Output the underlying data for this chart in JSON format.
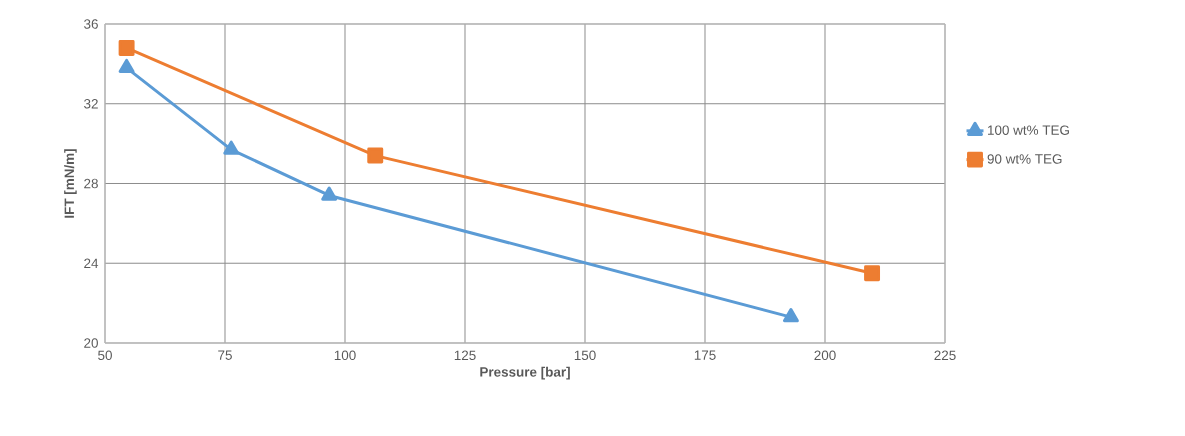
{
  "chart_data": {
    "type": "line",
    "xlabel": "Pressure [bar]",
    "ylabel": "IFT [mN/m]",
    "xlim": [
      50,
      225
    ],
    "xticks": [
      50,
      75,
      100,
      125,
      150,
      175,
      200,
      225
    ],
    "ylim": [
      20,
      36
    ],
    "yticks": [
      20,
      24,
      28,
      32,
      36
    ],
    "grid": true,
    "legend": "right",
    "line_style": "solid",
    "series": [
      {
        "name": "100 wt% TEG",
        "color": "#5b9bd5",
        "marker": "triangle",
        "x": [
          54.5,
          76.3,
          96.7,
          192.9
        ],
        "values": [
          33.8,
          29.7,
          27.4,
          21.3
        ]
      },
      {
        "name": "90 wt% TEG",
        "color": "#ed7d31",
        "marker": "square",
        "x": [
          54.5,
          106.3,
          209.8
        ],
        "values": [
          34.8,
          29.4,
          23.5
        ]
      }
    ]
  }
}
